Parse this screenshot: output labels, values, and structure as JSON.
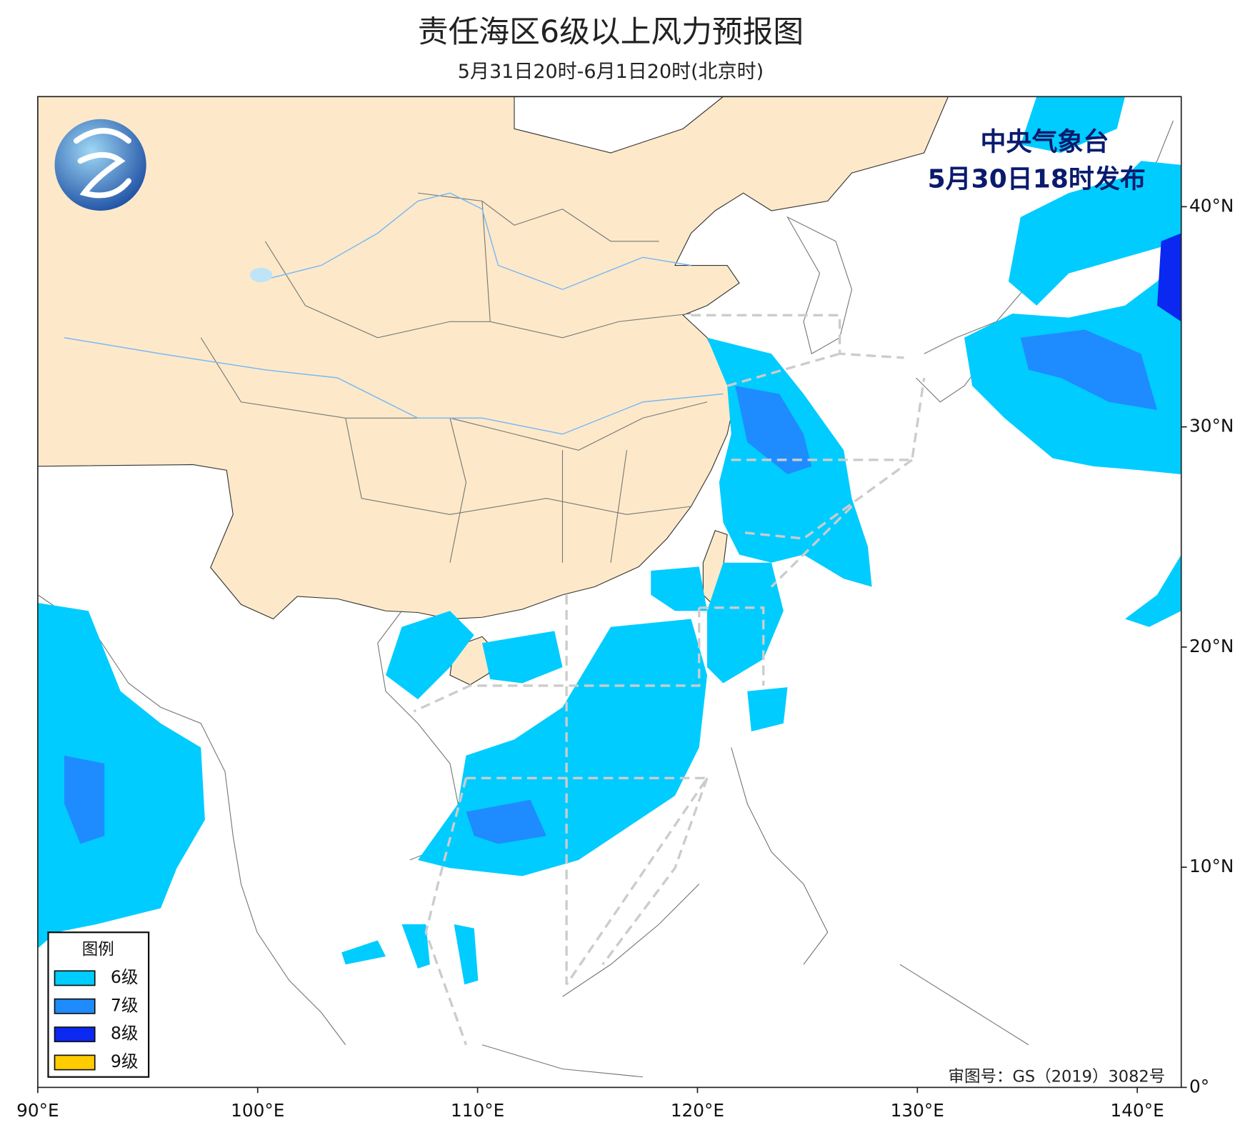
{
  "title": "责任海区6级以上风力预报图",
  "subtitle": "5月31日20时-6月1日20时(北京时)",
  "issuer": "中央气象台",
  "issued": "5月30日18时发布",
  "review_number": "审图号：GS（2019）3082号",
  "map": {
    "xlim": [
      90,
      142
    ],
    "ylim": [
      0,
      45
    ],
    "xticks": [
      {
        "value": 90,
        "label": "90°E"
      },
      {
        "value": 100,
        "label": "100°E"
      },
      {
        "value": 110,
        "label": "110°E"
      },
      {
        "value": 120,
        "label": "120°E"
      },
      {
        "value": 130,
        "label": "130°E"
      },
      {
        "value": 140,
        "label": "140°E"
      }
    ],
    "yticks": [
      {
        "value": 0,
        "label": "0°"
      },
      {
        "value": 10,
        "label": "10°N"
      },
      {
        "value": 20,
        "label": "20°N"
      },
      {
        "value": 30,
        "label": "30°N"
      },
      {
        "value": 40,
        "label": "40°N"
      }
    ]
  },
  "legend": {
    "title": "图例",
    "items": [
      {
        "label": "6级",
        "color": "#00ccff"
      },
      {
        "label": "7级",
        "color": "#1e8cff"
      },
      {
        "label": "8级",
        "color": "#0a28f0"
      },
      {
        "label": "9级",
        "color": "#ffcc00"
      }
    ]
  }
}
